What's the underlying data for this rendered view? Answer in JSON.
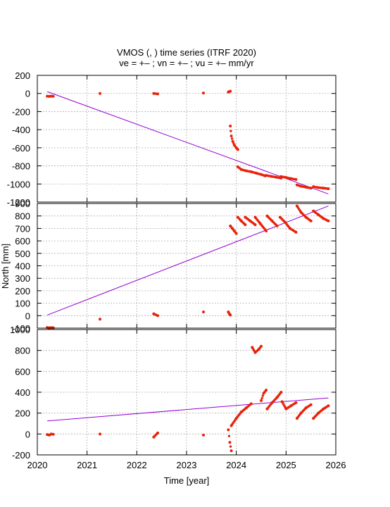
{
  "title_line1": "VMOS (, ) time series (ITRF 2020)",
  "title_line2": "ve =  +– ; vn =  +– ; vu =  +–  mm/yr",
  "xlabel": "Time [year]",
  "ylabel_middle": "North [mm]",
  "colors": {
    "points": "#e8230a",
    "trend": "#9400d3",
    "grid": "#b0b0b0",
    "axis": "#000000"
  },
  "chart_data": [
    {
      "type": "scatter",
      "panel": "east",
      "xlim": [
        2020,
        2026
      ],
      "ylim": [
        -1200,
        200
      ],
      "x_ticks": [
        2020,
        2021,
        2022,
        2023,
        2024,
        2025,
        2026
      ],
      "y_ticks": [
        -1200,
        -1000,
        -800,
        -600,
        -400,
        -200,
        0,
        200
      ],
      "y_tick_labels": [
        "-1200",
        "-1000",
        "-800",
        "-600",
        "-400",
        "-200",
        "0",
        "200"
      ],
      "grid": true,
      "trend": {
        "x": [
          2020.2,
          2025.85
        ],
        "y": [
          20,
          -1110
        ]
      },
      "series": [
        {
          "x": [
            2020.2,
            2020.24,
            2020.28,
            2020.32
          ],
          "y": [
            -30,
            -32,
            -29,
            -31
          ]
        },
        {
          "x": [
            2021.26
          ],
          "y": [
            0
          ]
        },
        {
          "x": [
            2022.34,
            2022.42
          ],
          "y": [
            0,
            -5
          ]
        },
        {
          "x": [
            2023.34
          ],
          "y": [
            5
          ]
        },
        {
          "x": [
            2023.84,
            2023.86,
            2023.88
          ],
          "y": [
            15,
            20,
            25
          ]
        },
        {
          "x": [
            2023.88,
            2023.9,
            2023.93,
            2023.96,
            2024.0,
            2024.03
          ],
          "y": [
            -360,
            -470,
            -530,
            -570,
            -600,
            -620
          ]
        },
        {
          "x": [
            2024.03,
            2024.1,
            2024.2,
            2024.3,
            2024.4,
            2024.5,
            2024.58
          ],
          "y": [
            -810,
            -840,
            -855,
            -865,
            -880,
            -895,
            -910
          ]
        },
        {
          "x": [
            2024.6,
            2024.7,
            2024.8,
            2024.9
          ],
          "y": [
            -905,
            -915,
            -925,
            -935
          ]
        },
        {
          "x": [
            2024.9,
            2025.0,
            2025.1,
            2025.2
          ],
          "y": [
            -918,
            -928,
            -940,
            -950
          ]
        },
        {
          "x": [
            2025.22,
            2025.3,
            2025.4,
            2025.5
          ],
          "y": [
            -1010,
            -1025,
            -1035,
            -1045
          ]
        },
        {
          "x": [
            2025.55,
            2025.65,
            2025.75,
            2025.85
          ],
          "y": [
            -1030,
            -1040,
            -1045,
            -1052
          ]
        }
      ]
    },
    {
      "type": "scatter",
      "panel": "north",
      "xlim": [
        2020,
        2026
      ],
      "ylim": [
        -100,
        900
      ],
      "x_ticks": [
        2020,
        2021,
        2022,
        2023,
        2024,
        2025,
        2026
      ],
      "y_ticks": [
        -100,
        0,
        100,
        200,
        300,
        400,
        500,
        600,
        700,
        800,
        900
      ],
      "y_tick_labels": [
        "-100",
        "0",
        "100",
        "200",
        "300",
        "400",
        "500",
        "600",
        "700",
        "800",
        "900"
      ],
      "grid": true,
      "trend": {
        "x": [
          2020.2,
          2025.85
        ],
        "y": [
          5,
          880
        ]
      },
      "series": [
        {
          "x": [
            2020.2,
            2020.24,
            2020.28,
            2020.32
          ],
          "y": [
            -95,
            -98,
            -96,
            -97
          ]
        },
        {
          "x": [
            2021.26
          ],
          "y": [
            -28
          ]
        },
        {
          "x": [
            2022.34,
            2022.42
          ],
          "y": [
            15,
            0
          ]
        },
        {
          "x": [
            2023.34
          ],
          "y": [
            30
          ]
        },
        {
          "x": [
            2023.84,
            2023.86,
            2023.88
          ],
          "y": [
            30,
            15,
            5
          ]
        },
        {
          "x": [
            2023.88,
            2023.92,
            2023.96,
            2024.0
          ],
          "y": [
            720,
            700,
            680,
            660
          ]
        },
        {
          "x": [
            2024.03,
            2024.1,
            2024.18
          ],
          "y": [
            790,
            760,
            730
          ]
        },
        {
          "x": [
            2024.18,
            2024.28,
            2024.38
          ],
          "y": [
            790,
            760,
            730
          ]
        },
        {
          "x": [
            2024.38,
            2024.48,
            2024.6
          ],
          "y": [
            790,
            740,
            680
          ]
        },
        {
          "x": [
            2024.62,
            2024.72,
            2024.82
          ],
          "y": [
            800,
            760,
            720
          ]
        },
        {
          "x": [
            2024.88,
            2024.98,
            2025.08,
            2025.2
          ],
          "y": [
            790,
            750,
            700,
            670
          ]
        },
        {
          "x": [
            2025.22,
            2025.3,
            2025.4,
            2025.5
          ],
          "y": [
            880,
            830,
            790,
            760
          ]
        },
        {
          "x": [
            2025.55,
            2025.65,
            2025.75,
            2025.85
          ],
          "y": [
            840,
            810,
            780,
            760
          ]
        }
      ]
    },
    {
      "type": "scatter",
      "panel": "up",
      "xlim": [
        2020,
        2026
      ],
      "ylim": [
        -200,
        1000
      ],
      "x_ticks": [
        2020,
        2021,
        2022,
        2023,
        2024,
        2025,
        2026
      ],
      "x_tick_labels": [
        "2020",
        "2021",
        "2022",
        "2023",
        "2024",
        "2025",
        "2026"
      ],
      "y_ticks": [
        -200,
        0,
        200,
        400,
        600,
        800,
        1000
      ],
      "y_tick_labels": [
        "-200",
        "0",
        "200",
        "400",
        "600",
        "800",
        "1000"
      ],
      "grid": true,
      "trend": {
        "x": [
          2020.2,
          2025.85
        ],
        "y": [
          125,
          345
        ]
      },
      "series": [
        {
          "x": [
            2020.2,
            2020.24,
            2020.28,
            2020.32
          ],
          "y": [
            -5,
            -10,
            0,
            -3
          ]
        },
        {
          "x": [
            2021.26
          ],
          "y": [
            0
          ]
        },
        {
          "x": [
            2022.34,
            2022.42
          ],
          "y": [
            -30,
            10
          ]
        },
        {
          "x": [
            2023.34
          ],
          "y": [
            -10
          ]
        },
        {
          "x": [
            2023.84,
            2023.87,
            2023.9
          ],
          "y": [
            40,
            -80,
            -160
          ]
        },
        {
          "x": [
            2023.9,
            2024.0,
            2024.1,
            2024.2,
            2024.3
          ],
          "y": [
            80,
            150,
            210,
            250,
            290
          ]
        },
        {
          "x": [
            2024.32,
            2024.38,
            2024.45,
            2024.5
          ],
          "y": [
            830,
            780,
            810,
            840
          ]
        },
        {
          "x": [
            2024.5,
            2024.55,
            2024.6
          ],
          "y": [
            320,
            390,
            420
          ]
        },
        {
          "x": [
            2024.62,
            2024.72,
            2024.82,
            2024.9
          ],
          "y": [
            240,
            300,
            350,
            400
          ]
        },
        {
          "x": [
            2024.92,
            2025.0,
            2025.1,
            2025.2
          ],
          "y": [
            310,
            240,
            270,
            300
          ]
        },
        {
          "x": [
            2025.22,
            2025.3,
            2025.4,
            2025.5
          ],
          "y": [
            150,
            200,
            250,
            280
          ]
        },
        {
          "x": [
            2025.55,
            2025.65,
            2025.75,
            2025.85
          ],
          "y": [
            150,
            200,
            240,
            270
          ]
        }
      ]
    }
  ]
}
